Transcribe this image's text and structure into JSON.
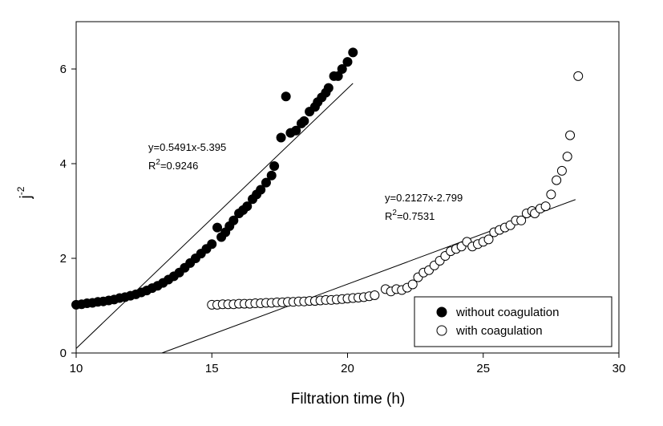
{
  "chart_data": {
    "type": "scatter",
    "x_label": "Filtration time (h)",
    "y_label": {
      "base": "j",
      "sup": "-2"
    },
    "xlim": [
      10,
      30
    ],
    "ylim": [
      0,
      7
    ],
    "xticks": [
      10,
      15,
      20,
      25,
      30
    ],
    "yticks": [
      0,
      2,
      4,
      6
    ],
    "legend": "lower right",
    "series": [
      {
        "name": "without coagulation",
        "color": "#000000",
        "marker": "filled",
        "x": [
          10.0,
          10.2,
          10.4,
          10.6,
          10.8,
          11.0,
          11.2,
          11.4,
          11.6,
          11.8,
          12.0,
          12.2,
          12.4,
          12.6,
          12.8,
          13.0,
          13.2,
          13.4,
          13.6,
          13.8,
          14.0,
          14.2,
          14.4,
          14.6,
          14.8,
          15.0,
          15.2,
          15.35,
          15.5,
          15.65,
          15.8,
          16.0,
          16.15,
          16.3,
          16.5,
          16.65,
          16.8,
          17.0,
          17.2,
          17.3,
          17.55,
          17.73,
          17.9,
          18.1,
          18.3,
          18.4,
          18.6,
          18.8,
          18.9,
          19.05,
          19.2,
          19.3,
          19.5,
          19.65,
          19.8,
          20.0,
          20.2
        ],
        "values": [
          1.02,
          1.03,
          1.05,
          1.06,
          1.08,
          1.09,
          1.11,
          1.13,
          1.16,
          1.18,
          1.21,
          1.24,
          1.28,
          1.32,
          1.37,
          1.42,
          1.48,
          1.55,
          1.62,
          1.7,
          1.8,
          1.9,
          2.0,
          2.1,
          2.2,
          2.3,
          2.65,
          2.45,
          2.55,
          2.68,
          2.8,
          2.95,
          3.02,
          3.1,
          3.25,
          3.35,
          3.45,
          3.6,
          3.75,
          3.95,
          4.55,
          5.42,
          4.65,
          4.7,
          4.85,
          4.9,
          5.1,
          5.2,
          5.3,
          5.4,
          5.5,
          5.6,
          5.85,
          5.85,
          6.0,
          6.15,
          6.35
        ]
      },
      {
        "name": "with coagulation",
        "color": "#000000",
        "marker": "open",
        "x": [
          15.0,
          15.2,
          15.4,
          15.6,
          15.8,
          16.0,
          16.2,
          16.4,
          16.6,
          16.8,
          17.0,
          17.2,
          17.4,
          17.6,
          17.8,
          18.0,
          18.2,
          18.4,
          18.6,
          18.8,
          19.0,
          19.2,
          19.4,
          19.6,
          19.8,
          20.0,
          20.2,
          20.4,
          20.6,
          20.8,
          21.0,
          21.4,
          21.6,
          21.8,
          22.0,
          22.2,
          22.4,
          22.6,
          22.8,
          23.0,
          23.2,
          23.4,
          23.6,
          23.8,
          24.0,
          24.2,
          24.4,
          24.6,
          24.8,
          25.0,
          25.2,
          25.4,
          25.6,
          25.8,
          26.0,
          26.2,
          26.4,
          26.6,
          26.8,
          26.9,
          27.1,
          27.3,
          27.5,
          27.7,
          27.9,
          28.1,
          28.2,
          28.5
        ],
        "values": [
          1.02,
          1.02,
          1.03,
          1.03,
          1.03,
          1.04,
          1.04,
          1.04,
          1.05,
          1.05,
          1.06,
          1.06,
          1.07,
          1.07,
          1.08,
          1.08,
          1.09,
          1.09,
          1.1,
          1.1,
          1.11,
          1.12,
          1.12,
          1.13,
          1.14,
          1.15,
          1.16,
          1.17,
          1.18,
          1.2,
          1.22,
          1.35,
          1.3,
          1.35,
          1.33,
          1.38,
          1.45,
          1.6,
          1.7,
          1.75,
          1.85,
          1.95,
          2.05,
          2.15,
          2.2,
          2.25,
          2.35,
          2.25,
          2.3,
          2.35,
          2.4,
          2.55,
          2.6,
          2.65,
          2.7,
          2.8,
          2.8,
          2.95,
          3.0,
          2.95,
          3.05,
          3.1,
          3.35,
          3.65,
          3.85,
          4.15,
          4.6,
          5.85
        ]
      }
    ],
    "fit_lines": [
      {
        "x": [
          10,
          20.2
        ],
        "values": [
          0.096,
          5.697
        ],
        "equation": "y=0.5491x-5.395",
        "r2": {
          "base": "R",
          "sup": "2",
          "rest": "=0.9246"
        }
      },
      {
        "x": [
          13.16,
          28.4
        ],
        "values": [
          0,
          3.242
        ],
        "equation": "y=0.2127x-2.799",
        "r2": {
          "base": "R",
          "sup": "2",
          "rest": "=0.7531"
        }
      }
    ]
  }
}
